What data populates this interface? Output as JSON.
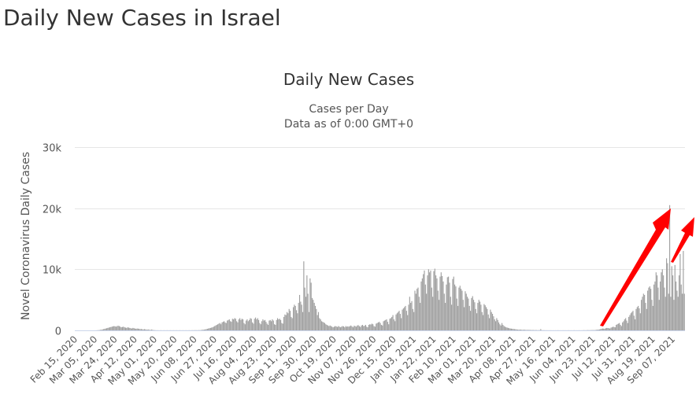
{
  "page": {
    "title": "Daily New Cases in Israel"
  },
  "chart_data": {
    "type": "bar",
    "title": "Daily New Cases",
    "subtitle_1": "Cases per Day",
    "subtitle_2": "Data as of 0:00 GMT+0",
    "ylabel": "Novel Coronavirus Daily Cases",
    "xlabel": "",
    "ylim": [
      0,
      30000
    ],
    "yticks": [
      {
        "value": 0,
        "label": "0"
      },
      {
        "value": 10000,
        "label": "10k"
      },
      {
        "value": 20000,
        "label": "20k"
      },
      {
        "value": 30000,
        "label": "30k"
      }
    ],
    "grid": true,
    "legend": "none",
    "bar_color": "#9e9e9e",
    "annotation_color": "#ff0000",
    "start_date": "Feb 15, 2020",
    "xtick_labels": [
      "Feb 15, 2020",
      "Mar 05, 2020",
      "Mar 24, 2020",
      "Apr 12, 2020",
      "May 01, 2020",
      "May 20, 2020",
      "Jun 08, 2020",
      "Jun 27, 2020",
      "Jul 16, 2020",
      "Aug 04, 2020",
      "Aug 23, 2020",
      "Sep 11, 2020",
      "Sep 30, 2020",
      "Oct 19, 2020",
      "Nov 07, 2020",
      "Nov 26, 2020",
      "Dec 15, 2020",
      "Jan 03, 2021",
      "Jan 22, 2021",
      "Feb 10, 2021",
      "Mar 01, 2021",
      "Mar 20, 2021",
      "Apr 08, 2021",
      "Apr 27, 2021",
      "May 16, 2021",
      "Jun 04, 2021",
      "Jun 23, 2021",
      "Jul 12, 2021",
      "Jul 31, 2021",
      "Aug 19, 2021",
      "Sep 07, 2021"
    ],
    "xtick_interval_days": 19,
    "values": [
      0,
      0,
      0,
      0,
      0,
      0,
      0,
      0,
      0,
      0,
      0,
      0,
      0,
      0,
      0,
      0,
      0,
      0,
      0,
      0,
      10,
      20,
      30,
      50,
      80,
      100,
      150,
      200,
      250,
      300,
      350,
      400,
      450,
      500,
      550,
      600,
      650,
      700,
      650,
      600,
      700,
      750,
      700,
      600,
      500,
      550,
      600,
      500,
      450,
      400,
      500,
      450,
      400,
      350,
      300,
      400,
      350,
      300,
      250,
      300,
      280,
      250,
      200,
      220,
      180,
      150,
      200,
      160,
      120,
      100,
      150,
      80,
      60,
      150,
      50,
      40,
      30,
      20,
      15,
      20,
      10,
      15,
      20,
      10,
      15,
      20,
      10,
      15,
      20,
      10,
      15,
      20,
      10,
      15,
      20,
      10,
      15,
      20,
      10,
      15,
      20,
      10,
      15,
      20,
      10,
      15,
      20,
      10,
      15,
      20,
      10,
      20,
      25,
      20,
      30,
      25,
      30,
      20,
      40,
      30,
      50,
      80,
      100,
      120,
      150,
      200,
      250,
      300,
      350,
      400,
      450,
      500,
      600,
      700,
      800,
      900,
      1000,
      1100,
      1200,
      1000,
      1300,
      1400,
      1500,
      1300,
      1200,
      1600,
      1700,
      1800,
      1500,
      1400,
      1900,
      1800,
      2000,
      1900,
      1500,
      1300,
      1800,
      2000,
      1700,
      1900,
      1800,
      1200,
      1000,
      1600,
      1800,
      1500,
      1700,
      2000,
      1900,
      1300,
      1100,
      1900,
      2100,
      1800,
      2000,
      1700,
      1200,
      1000,
      1500,
      1800,
      1600,
      1700,
      1400,
      1100,
      900,
      1600,
      1700,
      1500,
      1800,
      1600,
      1000,
      900,
      1700,
      2000,
      1800,
      1900,
      1700,
      1200,
      1100,
      2200,
      2600,
      2500,
      3000,
      2800,
      3500,
      3200,
      2200,
      2000,
      3800,
      4200,
      4000,
      3300,
      2800,
      4500,
      5800,
      4700,
      4200,
      3000,
      11300,
      7000,
      5500,
      9000,
      6000,
      3000,
      8500,
      7800,
      5300,
      5000,
      4500,
      4000,
      3500,
      2500,
      3000,
      2000,
      1800,
      1500,
      1400,
      1300,
      1200,
      1000,
      900,
      800,
      700,
      800,
      700,
      600,
      500,
      600,
      700,
      650,
      550,
      700,
      600,
      500,
      600,
      700,
      650,
      500,
      700,
      600,
      650,
      600,
      700,
      800,
      650,
      500,
      750,
      700,
      600,
      800,
      850,
      700,
      550,
      800,
      900,
      700,
      750,
      900,
      600,
      500,
      900,
      1000,
      950,
      1100,
      1000,
      700,
      600,
      1100,
      1200,
      1300,
      1400,
      1200,
      900,
      800,
      1500,
      1600,
      1700,
      1800,
      1400,
      1000,
      1900,
      2000,
      2200,
      2500,
      1800,
      1500,
      2600,
      2800,
      3000,
      3200,
      2700,
      2000,
      3400,
      3600,
      3800,
      4000,
      3200,
      2500,
      4200,
      5500,
      4500,
      4800,
      3500,
      3000,
      6500,
      6000,
      6800,
      7000,
      5500,
      4500,
      8000,
      8500,
      9200,
      9800,
      7500,
      6000,
      9000,
      10000,
      9500,
      9800,
      7000,
      5500,
      9700,
      10100,
      9000,
      8500,
      6500,
      5000,
      8800,
      9500,
      8900,
      8000,
      6000,
      4500,
      7500,
      8700,
      8800,
      7800,
      5500,
      4200,
      8400,
      8800,
      7500,
      7200,
      5200,
      4000,
      7000,
      7300,
      6800,
      6500,
      5000,
      3800,
      6400,
      6000,
      5500,
      5200,
      4000,
      3200,
      5300,
      5600,
      5000,
      4600,
      3500,
      2800,
      4500,
      5000,
      4700,
      4200,
      3000,
      2500,
      4300,
      4100,
      3800,
      3500,
      2600,
      2000,
      3400,
      3000,
      2700,
      2300,
      1800,
      1500,
      2000,
      1700,
      1300,
      1000,
      800,
      1200,
      900,
      700,
      600,
      500,
      450,
      400,
      350,
      300,
      280,
      250,
      220,
      200,
      180,
      150,
      120,
      100,
      130,
      110,
      90,
      80,
      100,
      90,
      70,
      60,
      80,
      70,
      60,
      50,
      60,
      50,
      40,
      50,
      40,
      30,
      40,
      30,
      200,
      30,
      20,
      30,
      20,
      15,
      20,
      15,
      10,
      20,
      15,
      10,
      15,
      10,
      15,
      10,
      20,
      15,
      10,
      15,
      10,
      15,
      20,
      10,
      15,
      10,
      15,
      20,
      10,
      15,
      10,
      15,
      20,
      10,
      15,
      10,
      15,
      20,
      10,
      15,
      20,
      30,
      25,
      20,
      30,
      40,
      35,
      30,
      40,
      50,
      45,
      40,
      60,
      80,
      100,
      120,
      150,
      200,
      250,
      300,
      280,
      250,
      350,
      400,
      380,
      350,
      300,
      450,
      500,
      600,
      550,
      500,
      900,
      1000,
      1100,
      1200,
      900,
      700,
      1300,
      1500,
      1800,
      2000,
      1600,
      1200,
      2200,
      2500,
      2800,
      3000,
      3200,
      2400,
      1800,
      3500,
      3800,
      4000,
      3600,
      2800,
      5000,
      5500,
      6000,
      5800,
      4500,
      3500,
      6500,
      7000,
      7200,
      6800,
      5000,
      4000,
      7500,
      8000,
      9500,
      9000,
      7000,
      5000,
      8000,
      9500,
      10000,
      9000,
      7000,
      5500,
      11800,
      11000,
      6000,
      20500,
      5500,
      10500,
      9000,
      5000,
      10700,
      8000,
      6500,
      5500,
      9000,
      12500,
      7500,
      6000,
      13000,
      6000
    ]
  }
}
